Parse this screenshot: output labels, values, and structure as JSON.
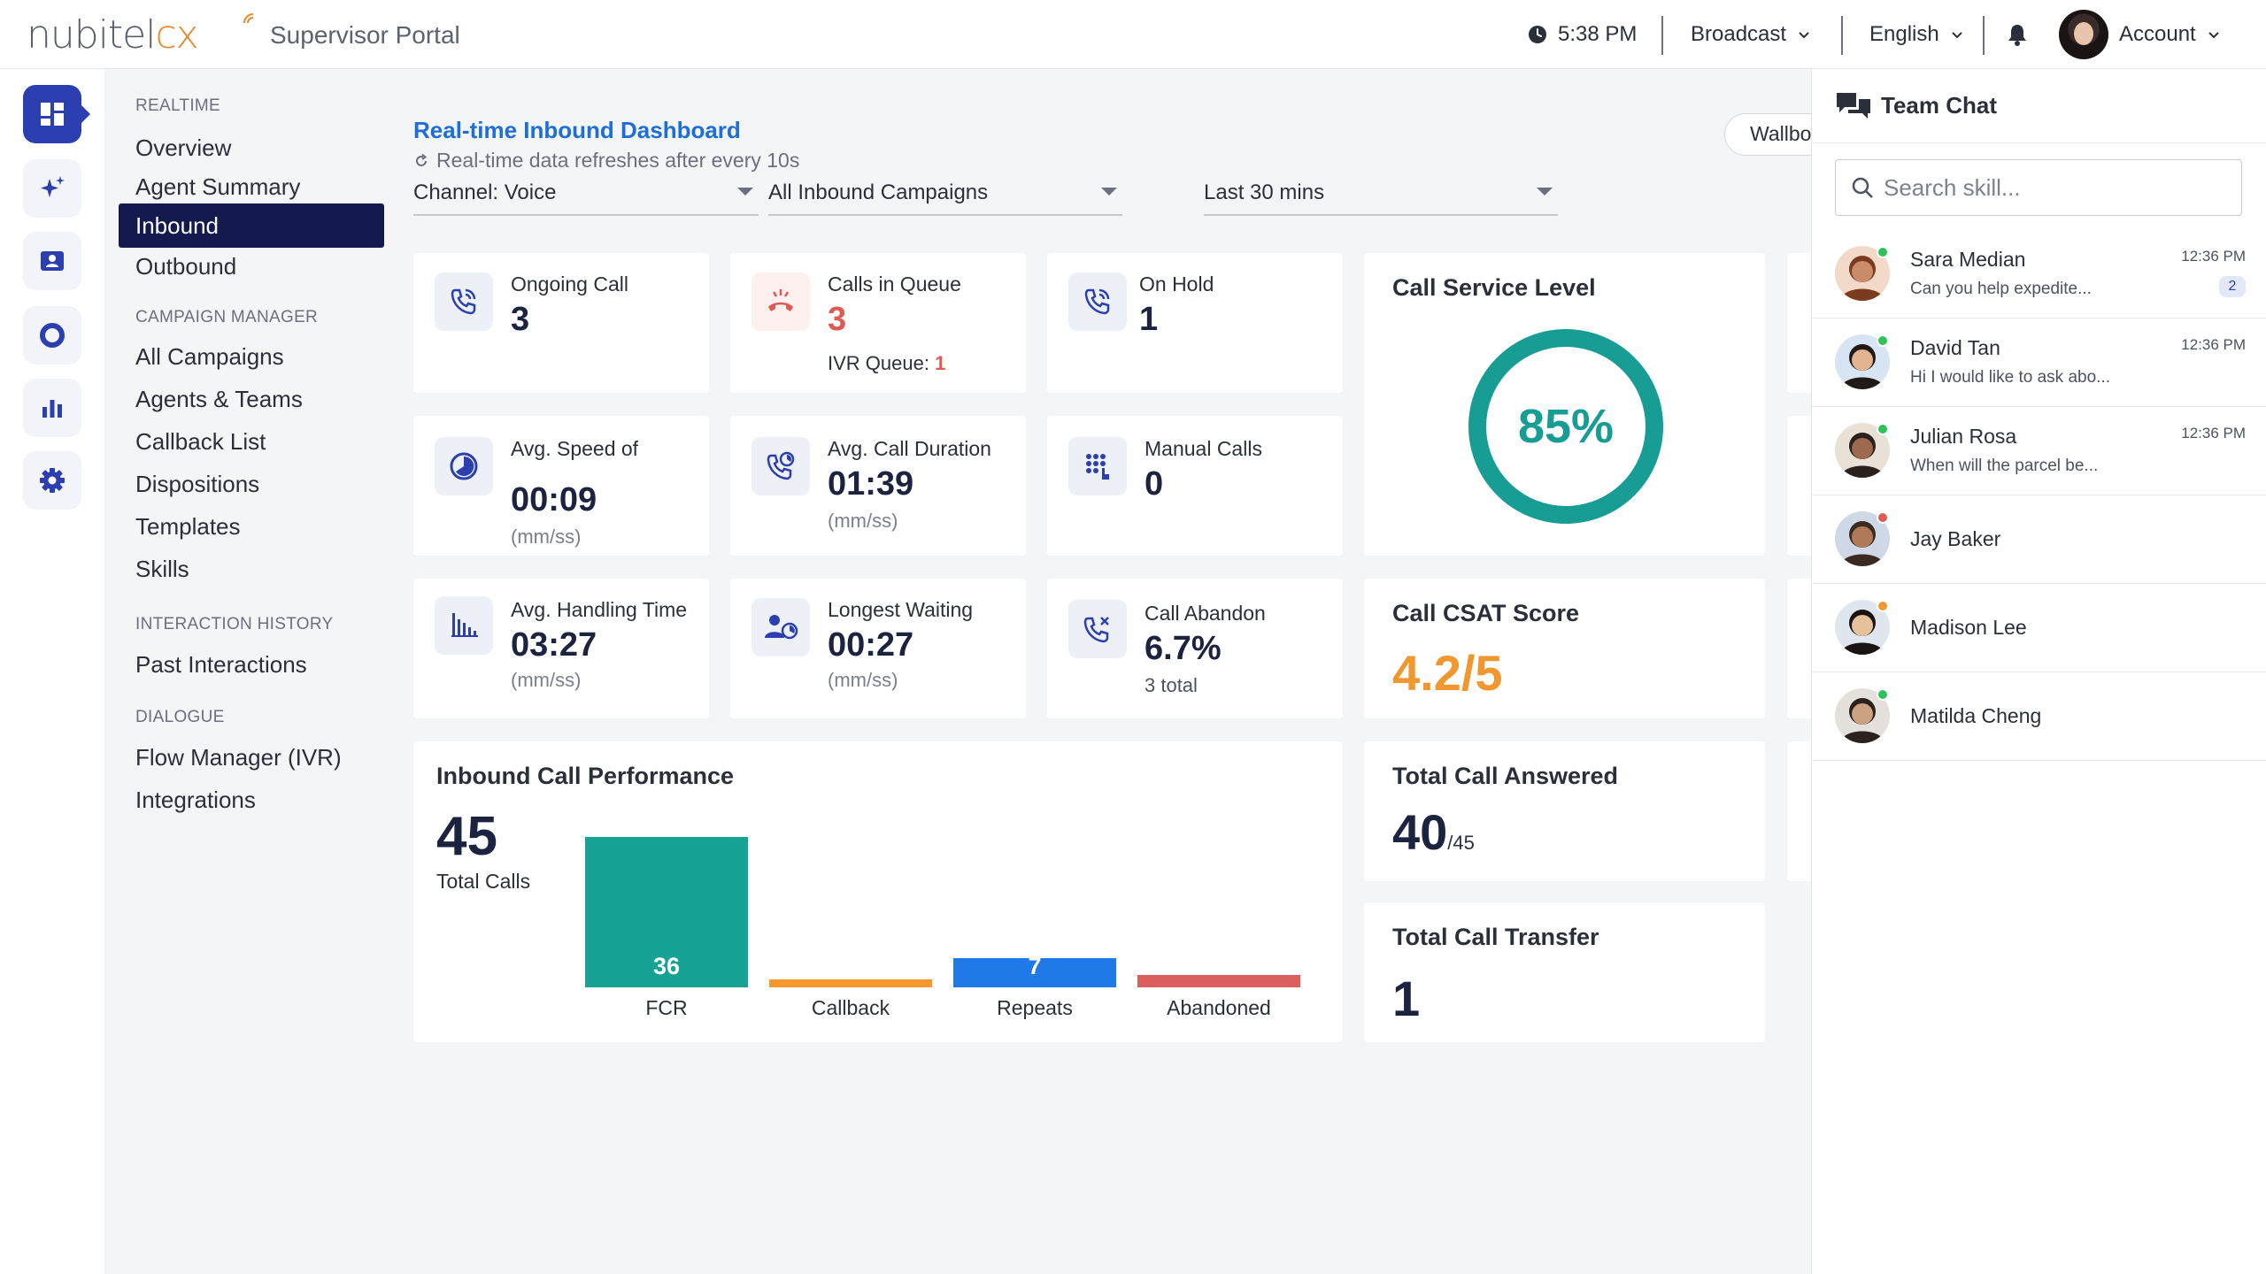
{
  "app": {
    "logo_text": "nubitel",
    "logo_suffix": "cx",
    "portal_title": "Supervisor Portal"
  },
  "topbar": {
    "time": "5:38 PM",
    "broadcast_label": "Broadcast",
    "language_label": "English",
    "account_label": "Account"
  },
  "rail": {
    "items": [
      {
        "icon": "dashboard-icon",
        "active": true
      },
      {
        "icon": "sparkle-icon",
        "active": false
      },
      {
        "icon": "contact-card-icon",
        "active": false
      },
      {
        "icon": "donut-chart-icon",
        "active": false
      },
      {
        "icon": "bar-chart-icon",
        "active": false
      },
      {
        "icon": "gear-icon",
        "active": false
      }
    ]
  },
  "nav": {
    "sections": [
      {
        "title": "REALTIME",
        "items": [
          "Overview",
          "Agent Summary",
          "Inbound",
          "Outbound"
        ]
      },
      {
        "title": "CAMPAIGN MANAGER",
        "items": [
          "All Campaigns",
          "Agents & Teams",
          "Callback List",
          "Dispositions",
          "Templates",
          "Skills"
        ]
      },
      {
        "title": "INTERACTION HISTORY",
        "items": [
          "Past Interactions"
        ]
      },
      {
        "title": "DIALOGUE",
        "items": [
          "Flow Manager (IVR)",
          "Integrations"
        ]
      }
    ],
    "active_item": "Inbound"
  },
  "dashboard": {
    "title": "Real-time Inbound Dashboard",
    "subtitle": "Real-time data refreshes after every 10s",
    "wallboard_label": "Wallboard",
    "filters": {
      "channel": "Channel: Voice",
      "campaigns": "All Inbound Campaigns",
      "range": "Last 30 mins"
    },
    "kpis": {
      "ongoing_call": {
        "label": "Ongoing Call",
        "value": "3"
      },
      "calls_in_queue": {
        "label": "Calls in Queue",
        "value": "3",
        "sub_label": "IVR Queue: ",
        "sub_value": "1"
      },
      "on_hold": {
        "label": "On Hold",
        "value": "1"
      },
      "avg_speed": {
        "label": "Avg. Speed of",
        "value": "00:09",
        "unit": "(mm/ss)"
      },
      "avg_call_duration": {
        "label": "Avg. Call Duration",
        "value": "01:39",
        "unit": "(mm/ss)"
      },
      "manual_calls": {
        "label": "Manual Calls",
        "value": "0"
      },
      "avg_handling_time": {
        "label": "Avg. Handling Time",
        "value": "03:27",
        "unit": "(mm/ss)"
      },
      "longest_waiting": {
        "label": "Longest Waiting",
        "value": "00:27",
        "unit": "(mm/ss)"
      },
      "call_abandon": {
        "label": "Call Abandon",
        "value": "6.7%",
        "sub": "3 total"
      }
    },
    "service_level": {
      "title": "Call Service Level",
      "value": "85%",
      "fraction": 0.85,
      "color": "#179d94"
    },
    "csat": {
      "title": "Call CSAT Score",
      "value": "4.2/5",
      "color": "#f0982f"
    },
    "total_answered": {
      "title": "Total Call Answered",
      "value": "40",
      "of": "/45"
    },
    "total_transfer": {
      "title": "Total Call Transfer",
      "value": "1"
    },
    "performance": {
      "title": "Inbound Call Performance",
      "total": "45",
      "total_label": "Total Calls"
    }
  },
  "chart_data": {
    "type": "bar",
    "title": "Inbound Call Performance",
    "categories": [
      "FCR",
      "Callback",
      "Repeats",
      "Abandoned"
    ],
    "values": [
      36,
      2,
      7,
      3
    ],
    "colors": [
      "#16a394",
      "#f5992f",
      "#1f79e6",
      "#db5f5f"
    ]
  },
  "chat": {
    "title": "Team Chat",
    "search_placeholder": "Search skill...",
    "contacts": [
      {
        "name": "Sara Median",
        "message": "Can you help expedite...",
        "time": "12:36 PM",
        "unread": "2",
        "status": "#2ec25a"
      },
      {
        "name": "David Tan",
        "message": "Hi I would like to ask abo...",
        "time": "12:36 PM",
        "unread": "",
        "status": "#2ec25a"
      },
      {
        "name": "Julian Rosa",
        "message": "When will the parcel be...",
        "time": "12:36 PM",
        "unread": "",
        "status": "#2ec25a"
      },
      {
        "name": "Jay Baker",
        "message": "",
        "time": "",
        "unread": "",
        "status": "#e05a55"
      },
      {
        "name": "Madison Lee",
        "message": "",
        "time": "",
        "unread": "",
        "status": "#f0982f"
      },
      {
        "name": "Matilda Cheng",
        "message": "",
        "time": "",
        "unread": "",
        "status": "#2ec25a"
      }
    ]
  }
}
